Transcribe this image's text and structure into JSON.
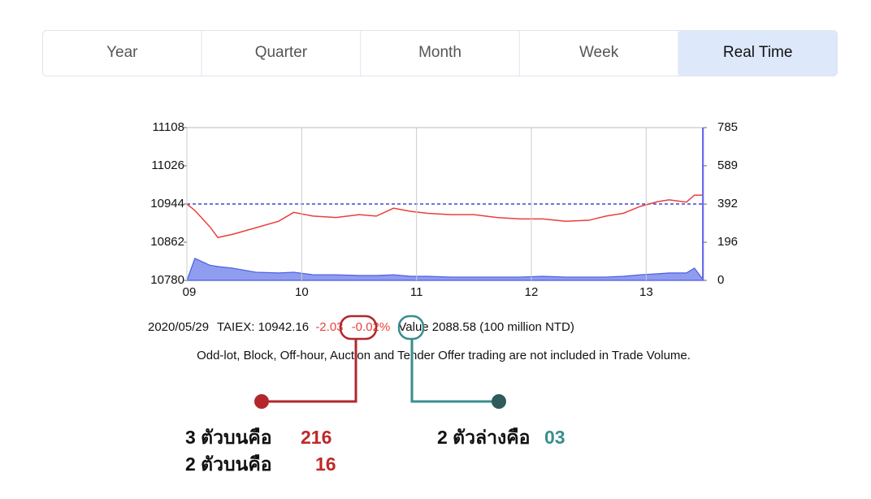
{
  "tabs": [
    "Year",
    "Quarter",
    "Month",
    "Week",
    "Real Time"
  ],
  "active_tab": 4,
  "chart_data": {
    "type": "line",
    "x": [
      9,
      9.07,
      9.2,
      9.27,
      9.4,
      9.6,
      9.8,
      9.93,
      10.1,
      10.3,
      10.5,
      10.65,
      10.8,
      10.95,
      11.1,
      11.3,
      11.5,
      11.7,
      11.9,
      12.1,
      12.3,
      12.5,
      12.65,
      12.8,
      12.95,
      13.1,
      13.2,
      13.35,
      13.42,
      13.5
    ],
    "series": [
      {
        "color": "#e8403a",
        "values": [
          10944,
          10930,
          10895,
          10872,
          10879,
          10893,
          10907,
          10926,
          10918,
          10915,
          10921,
          10918,
          10935,
          10928,
          10924,
          10921,
          10921,
          10915,
          10912,
          10912,
          10907,
          10909,
          10918,
          10924,
          10939,
          10949,
          10953,
          10948,
          10963,
          10963
        ]
      },
      {
        "color": "#4a5ee0",
        "axis": "y2",
        "fill": "#8f9cf0",
        "values": [
          0,
          113,
          78,
          71,
          63,
          42,
          38,
          42,
          29,
          29,
          25,
          25,
          29,
          21,
          21,
          17,
          17,
          17,
          17,
          21,
          17,
          17,
          17,
          21,
          29,
          34,
          38,
          38,
          63,
          0
        ]
      }
    ],
    "xlim": [
      9,
      13.5
    ],
    "xticks": [
      {
        "value": 9,
        "label": "09"
      },
      10,
      11,
      12,
      13
    ],
    "ylim": [
      10780,
      11108
    ],
    "yticks": [
      10780,
      10862,
      10944,
      11026,
      11108
    ],
    "y2lim": [
      0,
      785
    ],
    "y2ticks": [
      0,
      196,
      392,
      589,
      785
    ],
    "reference_line": {
      "value": 10944,
      "color": "#1a22c8"
    }
  },
  "info": {
    "date": "2020/05/29",
    "index_label": "TAIEX:",
    "index": "10942.16",
    "change": "-2.03",
    "change_pct": "-0.02%",
    "value_text": "Value 2088.58 (100 million NTD)",
    "note": "Odd-lot, Block, Off-hour, Auction and Tender Offer trading are not included in Trade Volume."
  },
  "annotations": [
    {
      "label": "3 ตัวบนคือ",
      "value": "216",
      "color": "#c0282a"
    },
    {
      "label": "2 ตัวบนคือ",
      "value": "16",
      "color": "#c0282a"
    },
    {
      "label": "2 ตัวล่างคือ",
      "value": "03",
      "color": "#3a8e8e"
    }
  ]
}
